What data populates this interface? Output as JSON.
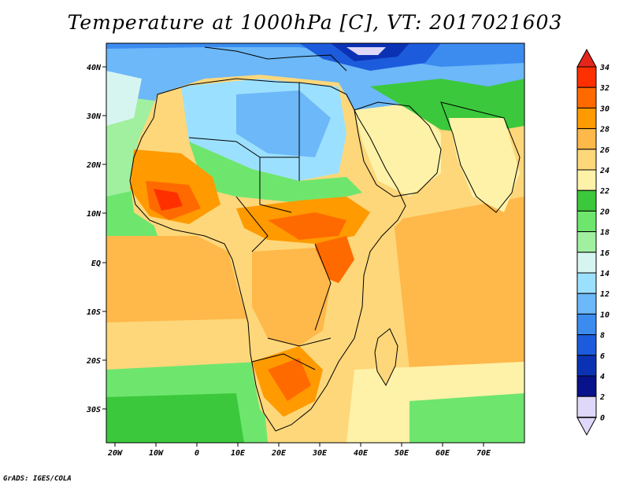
{
  "title": "Temperature at 1000hPa [C], VT: 2017021603",
  "lat_labels": [
    "40N",
    "30N",
    "20N",
    "10N",
    "EQ",
    "10S",
    "20S",
    "30S"
  ],
  "lon_labels": [
    "20W",
    "10W",
    "0",
    "10E",
    "20E",
    "30E",
    "40E",
    "50E",
    "60E",
    "70E"
  ],
  "colorbar": {
    "labels": [
      "34",
      "32",
      "30",
      "28",
      "26",
      "24",
      "22",
      "20",
      "18",
      "16",
      "14",
      "12",
      "10",
      "8",
      "6",
      "4",
      "2",
      "0"
    ],
    "colors_top_to_bottom": [
      "#ff3000",
      "#ff6a00",
      "#ff9a00",
      "#ffb84a",
      "#fdd77a",
      "#fef2a8",
      "#3cc83c",
      "#6ee66e",
      "#a0f0a0",
      "#d7f5f0",
      "#9ce0ff",
      "#6cb8f8",
      "#3c8cf0",
      "#1c5cdc",
      "#0c32b4",
      "#08128a",
      "#e0d8f8"
    ],
    "over_color": "#e4251b",
    "under_color": "#e0d8f8"
  },
  "footer": "GrADS: IGES/COLA"
}
